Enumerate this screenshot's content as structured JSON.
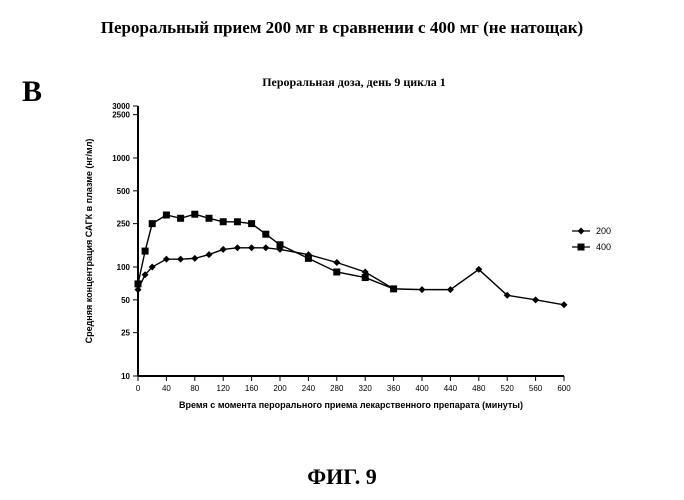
{
  "main_title": "Пероральный прием 200 мг в сравнении с 400 мг (не натощак)",
  "panel_letter": "B",
  "fig_caption": "ФИГ. 9",
  "chart": {
    "type": "line",
    "title": "Пероральная доза, день 9 цикла 1",
    "xlabel": "Время с момента перорального приема лекарственного препарата (минуты)",
    "ylabel": "Средняя концентрация САГК в плазме (нг/мл)",
    "xlim": [
      0,
      600
    ],
    "ylim": [
      10,
      3000
    ],
    "yscale": "log",
    "xtick_step": 40,
    "xticks": [
      0,
      40,
      80,
      120,
      160,
      200,
      240,
      280,
      320,
      360,
      400,
      440,
      480,
      520,
      560,
      600
    ],
    "yticks": [
      10,
      25,
      50,
      100,
      250,
      500,
      1000,
      2500,
      3000
    ],
    "ytick_labels": [
      "10",
      "25",
      "50",
      "100",
      "250",
      "500",
      "1000",
      "2500",
      "3000"
    ],
    "background_color": "#ffffff",
    "axis_color": "#000000",
    "axis_width": 2,
    "tick_length": 5,
    "label_fontsize": 9,
    "tick_fontsize": 8,
    "title_fontsize": 12,
    "marker_size": 3.5,
    "line_width": 1.4,
    "legend": {
      "position": "right",
      "fontsize": 9,
      "items": [
        {
          "label": "200",
          "marker": "diamond",
          "color": "#000000"
        },
        {
          "label": "400",
          "marker": "square",
          "color": "#000000"
        }
      ]
    },
    "series": [
      {
        "name": "200",
        "marker": "diamond",
        "color": "#000000",
        "x": [
          0,
          10,
          20,
          40,
          60,
          80,
          100,
          120,
          140,
          160,
          180,
          200,
          240,
          280,
          320,
          360,
          400,
          440,
          480,
          520,
          560,
          600
        ],
        "y": [
          62,
          85,
          100,
          118,
          118,
          120,
          130,
          145,
          150,
          150,
          150,
          145,
          130,
          110,
          90,
          63,
          62,
          62,
          95,
          55,
          50,
          45
        ]
      },
      {
        "name": "400",
        "marker": "square",
        "color": "#000000",
        "x": [
          0,
          10,
          20,
          40,
          60,
          80,
          100,
          120,
          140,
          160,
          180,
          200,
          240,
          280,
          320,
          360
        ],
        "y": [
          70,
          140,
          250,
          300,
          280,
          305,
          280,
          260,
          260,
          250,
          200,
          160,
          120,
          90,
          80,
          63
        ]
      }
    ]
  }
}
